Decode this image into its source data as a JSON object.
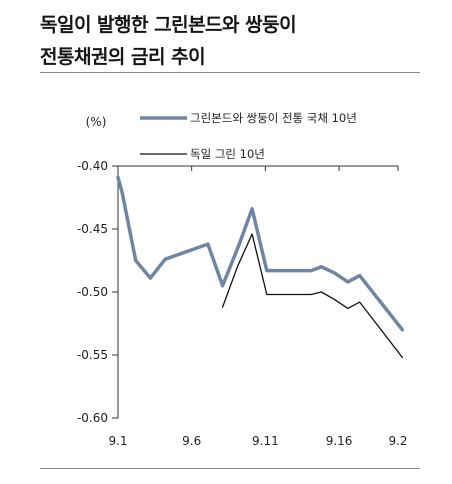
{
  "header": {
    "title_line1": "독일이 발행한 그린본드와 쌍둥이",
    "title_line2": "전통채권의 금리 추이"
  },
  "chart_data": {
    "type": "line",
    "title": "독일이 발행한 그린본드와 쌍둥이 전통채권의 금리 추이",
    "unit_label": "(%)",
    "x_tick_labels": [
      "9.1",
      "9.6",
      "9.11",
      "9.16",
      "9.2"
    ],
    "y_tick_labels": [
      "-0.40",
      "-0.45",
      "-0.50",
      "-0.55",
      "-0.60"
    ],
    "ylim": [
      -0.6,
      -0.4
    ],
    "yticks": [
      -0.6,
      -0.55,
      -0.5,
      -0.45,
      -0.4
    ],
    "x_range": [
      1,
      20
    ],
    "xticks": [
      1,
      6,
      11,
      16,
      20
    ],
    "grid": false,
    "legend_position": "top-right",
    "series": [
      {
        "name": "그린본드와 쌍둥이 전통 국채 10년",
        "color": "#6f86a3",
        "width": 3.5,
        "x": [
          1,
          1.3,
          2.2,
          3.2,
          4.2,
          7.1,
          8.1,
          9.2,
          10.1,
          11.1,
          14.1,
          14.8,
          15.7,
          16.6,
          17.4,
          20.3
        ],
        "y": [
          -0.409,
          -0.422,
          -0.475,
          -0.489,
          -0.474,
          -0.462,
          -0.495,
          -0.463,
          -0.434,
          -0.483,
          -0.483,
          -0.48,
          -0.485,
          -0.492,
          -0.487,
          -0.53
        ]
      },
      {
        "name": "독일 그린 10년",
        "color": "#111111",
        "width": 1.3,
        "x": [
          8.1,
          9.1,
          10.1,
          11.1,
          14.1,
          14.8,
          15.7,
          16.6,
          17.4,
          20.3
        ],
        "y": [
          -0.512,
          -0.48,
          -0.454,
          -0.502,
          -0.502,
          -0.5,
          -0.506,
          -0.513,
          -0.508,
          -0.552
        ]
      }
    ]
  }
}
